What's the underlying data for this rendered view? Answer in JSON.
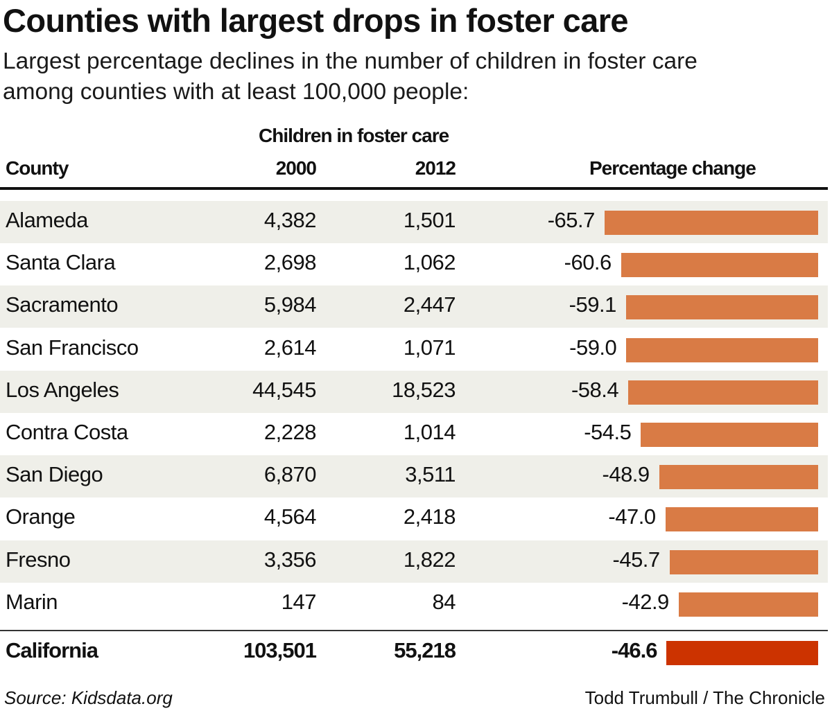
{
  "title": "Counties with largest drops in foster care",
  "subtitle_lines": [
    "Largest percentage declines in the number of children in foster care",
    "among counties with at least 100,000 people:"
  ],
  "chart_data": {
    "type": "table",
    "group_header": "Children in foster care",
    "columns": [
      "County",
      "2000",
      "2012",
      "Percentage change"
    ],
    "rows": [
      {
        "county": "Alameda",
        "y2000": "4,382",
        "y2012": "1,501",
        "pct": -65.7,
        "pct_label": "-65.7"
      },
      {
        "county": "Santa Clara",
        "y2000": "2,698",
        "y2012": "1,062",
        "pct": -60.6,
        "pct_label": "-60.6"
      },
      {
        "county": "Sacramento",
        "y2000": "5,984",
        "y2012": "2,447",
        "pct": -59.1,
        "pct_label": "-59.1"
      },
      {
        "county": "San Francisco",
        "y2000": "2,614",
        "y2012": "1,071",
        "pct": -59.0,
        "pct_label": "-59.0"
      },
      {
        "county": "Los Angeles",
        "y2000": "44,545",
        "y2012": "18,523",
        "pct": -58.4,
        "pct_label": "-58.4"
      },
      {
        "county": "Contra Costa",
        "y2000": "2,228",
        "y2012": "1,014",
        "pct": -54.5,
        "pct_label": "-54.5"
      },
      {
        "county": "San Diego",
        "y2000": "6,870",
        "y2012": "3,511",
        "pct": -48.9,
        "pct_label": "-48.9"
      },
      {
        "county": "Orange",
        "y2000": "4,564",
        "y2012": "2,418",
        "pct": -47.0,
        "pct_label": "-47.0"
      },
      {
        "county": "Fresno",
        "y2000": "3,356",
        "y2012": "1,822",
        "pct": -45.7,
        "pct_label": "-45.7"
      },
      {
        "county": "Marin",
        "y2000": "147",
        "y2012": "84",
        "pct": -42.9,
        "pct_label": "-42.9"
      }
    ],
    "total": {
      "county": "California",
      "y2000": "103,501",
      "y2012": "55,218",
      "pct": -46.6,
      "pct_label": "-46.6"
    },
    "colors": {
      "bar": "#d97b45",
      "total_bar": "#cc3300",
      "row_shade": "#efefe9"
    }
  },
  "footer": {
    "source": "Source: Kidsdata.org",
    "credit": "Todd Trumbull / The Chronicle"
  }
}
